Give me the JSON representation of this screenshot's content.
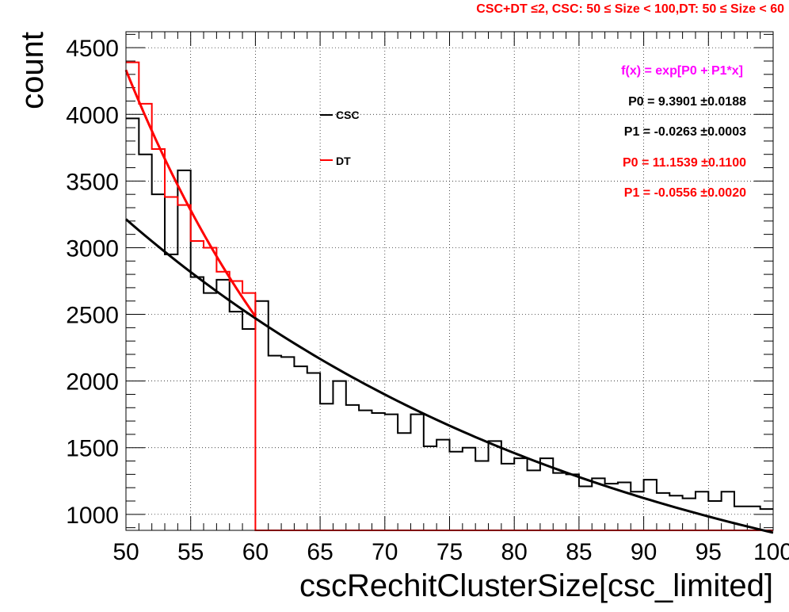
{
  "chart_data": {
    "type": "line",
    "title": "CSC+DT ≤2, CSC: 50 ≤ Size < 100,DT: 50 ≤ Size < 60",
    "xlabel": "cscRechitClusterSize[csc_limited]",
    "ylabel": "count",
    "xlim": [
      50,
      100
    ],
    "ylim": [
      880,
      4620
    ],
    "grid": true,
    "log_y": false,
    "x_ticks": [
      50,
      55,
      60,
      65,
      70,
      75,
      80,
      85,
      90,
      95,
      100
    ],
    "y_ticks": [
      1000,
      1500,
      2000,
      2500,
      3000,
      3500,
      4000,
      4500
    ],
    "legend_position": "top-center",
    "series": [
      {
        "name": "CSC",
        "color": "#000000",
        "kind": "histogram",
        "bin_edges_start": 50,
        "bin_width": 1,
        "values": [
          3970,
          3700,
          3400,
          2950,
          3580,
          2780,
          2660,
          2760,
          2520,
          2390,
          2600,
          2190,
          2180,
          2110,
          2060,
          1830,
          2000,
          1820,
          1780,
          1760,
          1750,
          1610,
          1750,
          1510,
          1560,
          1470,
          1500,
          1400,
          1550,
          1380,
          1420,
          1330,
          1420,
          1310,
          1300,
          1210,
          1270,
          1230,
          1240,
          1170,
          1260,
          1160,
          1140,
          1120,
          1170,
          1100,
          1170,
          1060,
          1060,
          1040
        ]
      },
      {
        "name": "DT",
        "color": "#ff0000",
        "kind": "histogram",
        "bin_edges_start": 50,
        "bin_width": 1,
        "values": [
          4390,
          4080,
          3740,
          3380,
          3320,
          3050,
          3000,
          2820,
          2750,
          2660,
          880,
          880,
          880,
          880,
          880,
          880,
          880,
          880,
          880,
          880,
          880,
          880,
          880,
          880,
          880,
          880,
          880,
          880,
          880,
          880,
          880,
          880,
          880,
          880,
          880,
          880,
          880,
          880,
          880,
          880,
          880,
          880,
          880,
          880,
          880,
          880,
          880,
          880,
          880,
          880
        ]
      },
      {
        "name": "CSC fit",
        "color": "#000000",
        "kind": "function",
        "formula": "exp(P0 + P1*x)",
        "P0": 9.3901,
        "P1": -0.0263,
        "x_range": [
          50,
          100
        ]
      },
      {
        "name": "DT fit",
        "color": "#ff0000",
        "kind": "function",
        "formula": "exp(P0 + P1*x)",
        "P0": 11.1539,
        "P1": -0.0556,
        "x_range": [
          50,
          60
        ]
      }
    ],
    "annotations": [
      {
        "text": "f(x) = exp[P0 + P1*x]",
        "color": "#ff00ff"
      },
      {
        "text": "P0 = 9.3901 ±0.0188",
        "color": "#000000"
      },
      {
        "text": "P1 = -0.0263 ±0.0003",
        "color": "#000000"
      },
      {
        "text": "P0 = 11.1539 ±0.1100",
        "color": "#ff0000"
      },
      {
        "text": "P1 = -0.0556 ±0.0020",
        "color": "#ff0000"
      }
    ]
  }
}
